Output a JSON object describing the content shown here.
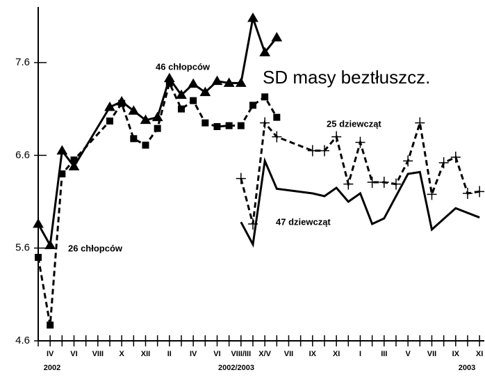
{
  "chart_data": {
    "type": "line",
    "title": "SD masy beztłuszcz.",
    "ylim": [
      4.6,
      8.2
    ],
    "yticks": [
      4.6,
      5.6,
      6.6,
      7.6
    ],
    "xlim": [
      0,
      37.4
    ],
    "xticks": [
      {
        "value": 1,
        "label": "IV"
      },
      {
        "value": 3,
        "label": "VI"
      },
      {
        "value": 5,
        "label": "VIII"
      },
      {
        "value": 7,
        "label": "X"
      },
      {
        "value": 9,
        "label": "XII"
      },
      {
        "value": 11,
        "label": "II"
      },
      {
        "value": 13,
        "label": "IV"
      },
      {
        "value": 15,
        "label": "VI"
      },
      {
        "value": 17,
        "label": "VIII/III"
      },
      {
        "value": 19,
        "label": "X/V"
      },
      {
        "value": 21,
        "label": "VII"
      },
      {
        "value": 23,
        "label": "IX"
      },
      {
        "value": 25,
        "label": "XI"
      },
      {
        "value": 27,
        "label": "I"
      },
      {
        "value": 29,
        "label": "III"
      },
      {
        "value": 31,
        "label": "V"
      },
      {
        "value": 33,
        "label": "VII"
      },
      {
        "value": 35,
        "label": "IX"
      },
      {
        "value": 37,
        "label": "XI"
      }
    ],
    "xminorticks": [
      0,
      2,
      4,
      6,
      8,
      10,
      12,
      14,
      16,
      18,
      20,
      22,
      24,
      26,
      28,
      30,
      32,
      34,
      36
    ],
    "year_labels": [
      "2002",
      "2002/2003",
      "2003"
    ],
    "series": [
      {
        "name": "46 chłopców",
        "color": "#000",
        "marker": "triangle",
        "dash": false,
        "x": [
          0,
          1,
          2,
          3,
          6,
          7,
          8,
          9,
          10,
          11,
          12,
          13,
          14,
          15,
          16,
          17,
          18,
          19,
          20
        ],
        "values": [
          5.86,
          5.63,
          6.65,
          6.48,
          7.12,
          7.18,
          7.08,
          6.98,
          7.01,
          7.43,
          7.25,
          7.37,
          7.28,
          7.4,
          7.38,
          7.38,
          8.08,
          7.71,
          7.87
        ]
      },
      {
        "name": "26 chłopców",
        "color": "#000",
        "marker": "square",
        "dash": true,
        "x": [
          0,
          1,
          2,
          3,
          6,
          7,
          8,
          9,
          10,
          11,
          12,
          13,
          14,
          15,
          16,
          17,
          18,
          19,
          20
        ],
        "values": [
          5.5,
          4.77,
          6.4,
          6.55,
          6.97,
          7.16,
          6.78,
          6.71,
          6.89,
          7.38,
          7.1,
          7.19,
          6.95,
          6.91,
          6.92,
          6.92,
          7.14,
          7.23,
          7.01
        ]
      },
      {
        "name": "25 dziewcząt",
        "color": "#000",
        "marker": "plus",
        "dash": true,
        "x": [
          17,
          18,
          19,
          20,
          23,
          24,
          25,
          26,
          27,
          28,
          29,
          30,
          31,
          32,
          33,
          34,
          35,
          36,
          37
        ],
        "values": [
          6.35,
          5.86,
          6.95,
          6.8,
          6.65,
          6.65,
          6.8,
          6.29,
          6.74,
          6.31,
          6.31,
          6.29,
          6.54,
          6.95,
          6.18,
          6.52,
          6.58,
          6.19,
          6.21
        ]
      },
      {
        "name": "47 dziewcząt",
        "color": "#000",
        "marker": "none",
        "dash": false,
        "x": [
          17,
          18,
          19,
          20,
          23,
          24,
          25,
          26,
          27,
          28,
          29,
          31,
          32,
          33,
          35,
          37
        ],
        "values": [
          5.88,
          5.64,
          6.54,
          6.24,
          6.19,
          6.16,
          6.25,
          6.1,
          6.19,
          5.86,
          5.92,
          6.4,
          6.42,
          5.8,
          6.03,
          5.93
        ]
      }
    ]
  }
}
